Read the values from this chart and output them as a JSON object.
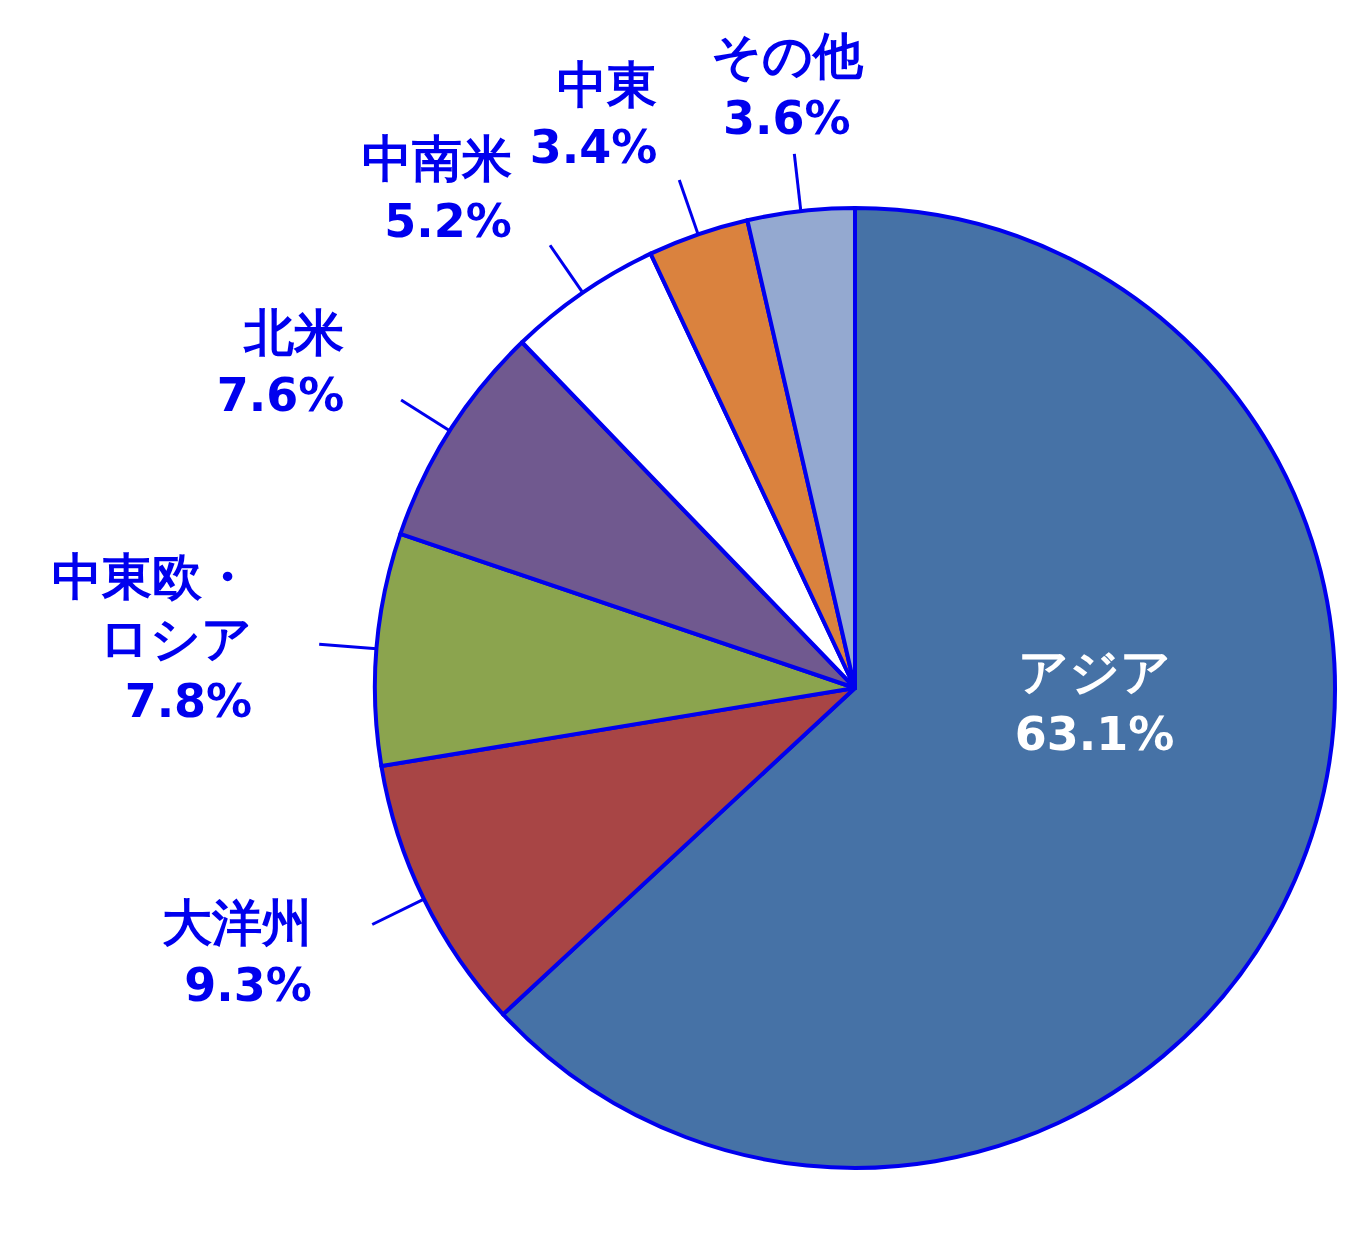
{
  "chart_data": {
    "type": "pie",
    "categories": [
      "アジア",
      "大洋州",
      "中東欧・ロシア",
      "北米",
      "中南米",
      "中東",
      "その他"
    ],
    "values": [
      63.1,
      9.3,
      7.8,
      7.6,
      5.2,
      3.4,
      3.6
    ],
    "value_labels": [
      "63.1%",
      "9.3%",
      "7.8%",
      "7.6%",
      "5.2%",
      "3.4%",
      "3.6%"
    ],
    "colors": [
      "#4672a6",
      "#a84545",
      "#8ba44e",
      "#70598f",
      "#ffffff",
      "#da823e",
      "#94a9d0"
    ]
  }
}
